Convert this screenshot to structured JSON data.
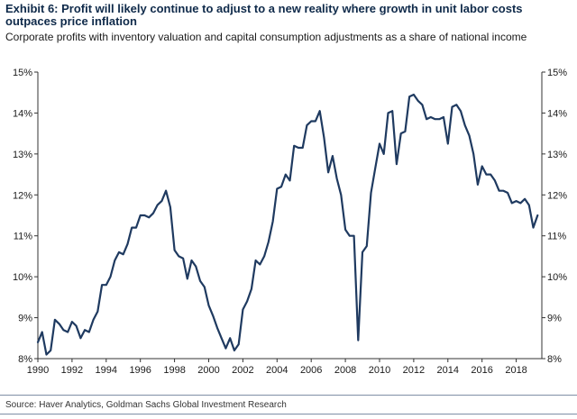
{
  "header": {
    "title": "Exhibit 6: Profit will likely continue to adjust to a new reality where growth in unit labor costs outpaces price inflation",
    "subtitle": "Corporate profits with inventory valuation and capital consumption adjustments as a share of national income"
  },
  "footer": {
    "source": "Source: Haver Analytics, Goldman Sachs Global Investment Research"
  },
  "colors": {
    "line": "#1f3a60",
    "axis": "#333333"
  },
  "chart_data": {
    "type": "line",
    "title": "",
    "xlabel": "",
    "ylabel": "",
    "xlim": [
      1990,
      2019.5
    ],
    "ylim": [
      8,
      15
    ],
    "x_ticks": [
      1990,
      1992,
      1994,
      1996,
      1998,
      2000,
      2002,
      2004,
      2006,
      2008,
      2010,
      2012,
      2014,
      2016,
      2018
    ],
    "x_tick_labels": [
      "1990",
      "1992",
      "1994",
      "1996",
      "1998",
      "2000",
      "2002",
      "2004",
      "2006",
      "2008",
      "2010",
      "2012",
      "2014",
      "2016",
      "2018"
    ],
    "y_ticks": [
      8,
      9,
      10,
      11,
      12,
      13,
      14,
      15
    ],
    "y_tick_labels": [
      "8%",
      "9%",
      "10%",
      "11%",
      "12%",
      "13%",
      "14%",
      "15%"
    ],
    "y_axis_both_sides": true,
    "grid": false,
    "series": [
      {
        "x": [
          1990.0,
          1990.25,
          1990.5,
          1990.75,
          1991.0,
          1991.25,
          1991.5,
          1991.75,
          1992.0,
          1992.25,
          1992.5,
          1992.75,
          1993.0,
          1993.25,
          1993.5,
          1993.75,
          1994.0,
          1994.25,
          1994.5,
          1994.75,
          1995.0,
          1995.25,
          1995.5,
          1995.75,
          1996.0,
          1996.25,
          1996.5,
          1996.75,
          1997.0,
          1997.25,
          1997.5,
          1997.75,
          1998.0,
          1998.25,
          1998.5,
          1998.75,
          1999.0,
          1999.25,
          1999.5,
          1999.75,
          2000.0,
          2000.25,
          2000.5,
          2000.75,
          2001.0,
          2001.25,
          2001.5,
          2001.75,
          2002.0,
          2002.25,
          2002.5,
          2002.75,
          2003.0,
          2003.25,
          2003.5,
          2003.75,
          2004.0,
          2004.25,
          2004.5,
          2004.75,
          2005.0,
          2005.25,
          2005.5,
          2005.75,
          2006.0,
          2006.25,
          2006.5,
          2006.75,
          2007.0,
          2007.25,
          2007.5,
          2007.75,
          2008.0,
          2008.25,
          2008.5,
          2008.75,
          2009.0,
          2009.25,
          2009.5,
          2009.75,
          2010.0,
          2010.25,
          2010.5,
          2010.75,
          2011.0,
          2011.25,
          2011.5,
          2011.75,
          2012.0,
          2012.25,
          2012.5,
          2012.75,
          2013.0,
          2013.25,
          2013.5,
          2013.75,
          2014.0,
          2014.25,
          2014.5,
          2014.75,
          2015.0,
          2015.25,
          2015.5,
          2015.75,
          2016.0,
          2016.25,
          2016.5,
          2016.75,
          2017.0,
          2017.25,
          2017.5,
          2017.75,
          2018.0,
          2018.25,
          2018.5,
          2018.75,
          2019.0,
          2019.25
        ],
        "values": [
          8.4,
          8.65,
          8.1,
          8.2,
          8.95,
          8.85,
          8.7,
          8.65,
          8.9,
          8.8,
          8.5,
          8.7,
          8.65,
          8.95,
          9.15,
          9.8,
          9.8,
          10.0,
          10.4,
          10.6,
          10.55,
          10.8,
          11.2,
          11.2,
          11.5,
          11.5,
          11.45,
          11.55,
          11.75,
          11.85,
          12.1,
          11.7,
          10.65,
          10.5,
          10.45,
          9.95,
          10.4,
          10.25,
          9.9,
          9.75,
          9.3,
          9.05,
          8.75,
          8.5,
          8.25,
          8.5,
          8.2,
          8.35,
          9.2,
          9.4,
          9.7,
          10.4,
          10.3,
          10.5,
          10.85,
          11.35,
          12.15,
          12.2,
          12.5,
          12.35,
          13.2,
          13.15,
          13.15,
          13.7,
          13.8,
          13.8,
          14.05,
          13.4,
          12.55,
          12.95,
          12.4,
          12.0,
          11.15,
          11.0,
          11.0,
          8.45,
          10.6,
          10.75,
          12.05,
          12.65,
          13.25,
          13.0,
          14.0,
          14.05,
          12.75,
          13.5,
          13.55,
          14.4,
          14.45,
          14.3,
          14.2,
          13.85,
          13.9,
          13.85,
          13.85,
          13.9,
          13.25,
          14.15,
          14.2,
          14.05,
          13.7,
          13.45,
          13.0,
          12.25,
          12.7,
          12.5,
          12.5,
          12.35,
          12.1,
          12.1,
          12.05,
          11.8,
          11.85,
          11.8,
          11.9,
          11.75,
          11.2,
          11.5
        ]
      }
    ]
  }
}
